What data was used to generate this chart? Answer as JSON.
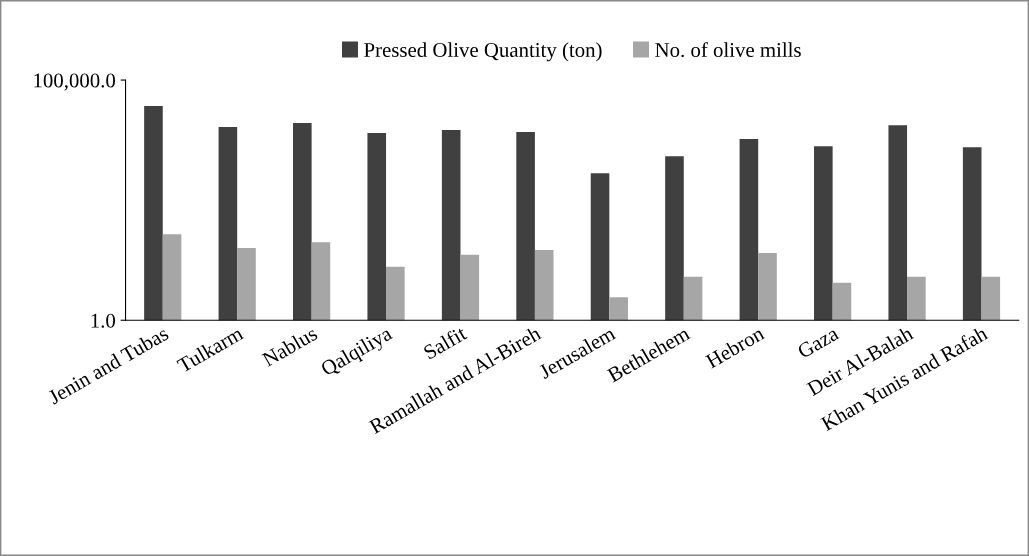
{
  "chart_data": {
    "type": "bar",
    "categories": [
      "Jenin and Tubas",
      "Tulkarm",
      "Nablus",
      "Qalqiliya",
      "Salfit",
      "Ramallah and Al-Bireh",
      "Jerusalem",
      "Bethlehem",
      "Hebron",
      "Gaza",
      "Deir Al-Balah",
      "Khan Yunis and Rafah"
    ],
    "series": [
      {
        "name": "Pressed Olive Quantity (ton)",
        "color": "#404040",
        "values": [
          28800,
          10500,
          12700,
          7900,
          9100,
          8300,
          1150,
          2600,
          5900,
          4200,
          11500,
          4000
        ]
      },
      {
        "name": "No. of olive mills",
        "color": "#a6a6a6",
        "values": [
          62,
          32,
          42,
          13,
          23,
          29,
          3,
          8,
          25,
          6,
          8,
          8
        ]
      }
    ],
    "log": true,
    "ylim": [
      1,
      100000
    ],
    "yticks": [
      {
        "value": 1,
        "label": "1.0"
      },
      {
        "value": 100000,
        "label": "100,000.0"
      }
    ],
    "grid": false,
    "legend": "top"
  }
}
